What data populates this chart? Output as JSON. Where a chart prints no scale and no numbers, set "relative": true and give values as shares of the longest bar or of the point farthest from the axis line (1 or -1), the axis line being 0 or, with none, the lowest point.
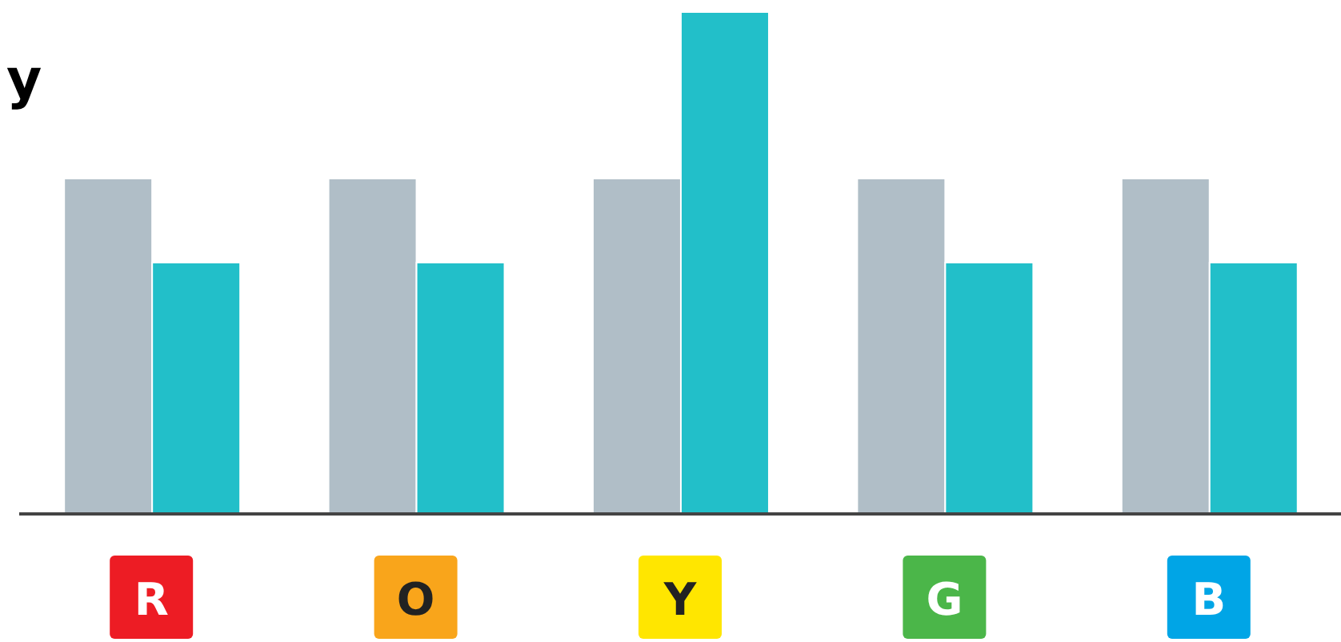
{
  "chart_data": {
    "type": "bar",
    "title": "y",
    "relative": true,
    "categories": [
      "R",
      "O",
      "Y",
      "G",
      "B"
    ],
    "series": [
      {
        "color": "#b0bec7",
        "values": [
          0.667,
          0.667,
          0.667,
          0.667,
          0.667
        ]
      },
      {
        "color": "#22bfc9",
        "values": [
          0.5,
          0.5,
          1,
          0.5,
          0.5
        ]
      }
    ]
  }
}
